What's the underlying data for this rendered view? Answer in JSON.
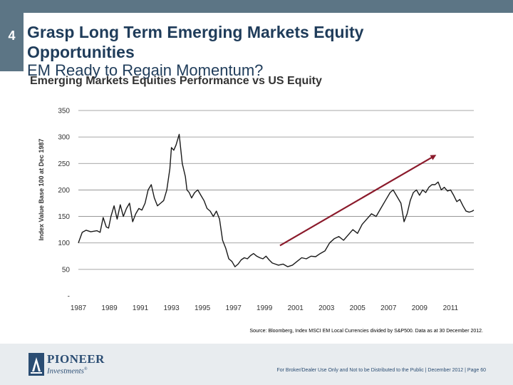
{
  "slide": {
    "number": "4",
    "title_line1": "Grasp Long Term Emerging Markets Equity",
    "title_line2": "Opportunities",
    "subtitle": "EM Ready to Regain Momentum?",
    "accent_color": "#5c7585",
    "title_color": "#1f3c5a"
  },
  "chart_data": {
    "type": "line",
    "title": "Emerging Markets Equities Performance vs US Equity",
    "ylabel": "Index Value Base 100 at Dec 1987",
    "xlabel": "",
    "ylim": [
      0,
      350
    ],
    "xlim": [
      1987,
      2012.5
    ],
    "y_ticks": [
      "-",
      "50",
      "100",
      "150",
      "200",
      "250",
      "300",
      "350"
    ],
    "y_tick_values": [
      0,
      50,
      100,
      150,
      200,
      250,
      300,
      350
    ],
    "x_ticks": [
      "1987",
      "1989",
      "1991",
      "1993",
      "1995",
      "1997",
      "1999",
      "2001",
      "2003",
      "2005",
      "2007",
      "2009",
      "2011"
    ],
    "x_tick_values": [
      1987,
      1989,
      1991,
      1993,
      1995,
      1997,
      1999,
      2001,
      2003,
      2005,
      2007,
      2009,
      2011
    ],
    "grid": true,
    "series": [
      {
        "name": "MSCI EM Local Currencies / S&P500",
        "color": "#1a1a1a",
        "x": [
          1987.0,
          1987.25,
          1987.5,
          1987.8,
          1988.2,
          1988.4,
          1988.6,
          1988.8,
          1988.95,
          1989.1,
          1989.3,
          1989.5,
          1989.7,
          1989.9,
          1990.1,
          1990.3,
          1990.5,
          1990.7,
          1990.9,
          1991.1,
          1991.3,
          1991.5,
          1991.7,
          1991.9,
          1992.1,
          1992.3,
          1992.5,
          1992.7,
          1992.9,
          1993.0,
          1993.15,
          1993.3,
          1993.5,
          1993.7,
          1993.9,
          1994.0,
          1994.15,
          1994.3,
          1994.5,
          1994.7,
          1994.9,
          1995.1,
          1995.3,
          1995.5,
          1995.7,
          1995.9,
          1996.1,
          1996.3,
          1996.5,
          1996.7,
          1996.9,
          1997.1,
          1997.3,
          1997.5,
          1997.7,
          1997.9,
          1998.1,
          1998.3,
          1998.5,
          1998.7,
          1998.9,
          1999.1,
          1999.3,
          1999.5,
          1999.7,
          1999.9,
          2000.2,
          2000.5,
          2000.8,
          2001.1,
          2001.4,
          2001.7,
          2002.0,
          2002.3,
          2002.6,
          2002.9,
          2003.2,
          2003.5,
          2003.8,
          2004.1,
          2004.4,
          2004.7,
          2005.0,
          2005.3,
          2005.6,
          2005.9,
          2006.2,
          2006.5,
          2006.8,
          2007.1,
          2007.3,
          2007.5,
          2007.8,
          2008.0,
          2008.2,
          2008.4,
          2008.6,
          2008.8,
          2009.0,
          2009.2,
          2009.4,
          2009.6,
          2009.8,
          2010.0,
          2010.2,
          2010.4,
          2010.6,
          2010.8,
          2011.0,
          2011.2,
          2011.4,
          2011.6,
          2011.8,
          2012.0,
          2012.2,
          2012.4,
          2012.5
        ],
        "values": [
          100,
          120,
          124,
          121,
          123,
          120,
          148,
          130,
          128,
          150,
          170,
          145,
          172,
          150,
          165,
          175,
          140,
          155,
          165,
          162,
          175,
          200,
          210,
          185,
          170,
          175,
          180,
          200,
          240,
          280,
          275,
          285,
          305,
          250,
          225,
          200,
          195,
          185,
          195,
          200,
          190,
          180,
          165,
          160,
          150,
          160,
          145,
          105,
          90,
          70,
          65,
          55,
          60,
          68,
          72,
          70,
          76,
          80,
          75,
          72,
          70,
          75,
          68,
          62,
          60,
          58,
          60,
          55,
          58,
          65,
          72,
          70,
          75,
          74,
          80,
          85,
          100,
          108,
          112,
          105,
          115,
          125,
          118,
          135,
          145,
          155,
          150,
          165,
          180,
          195,
          200,
          190,
          175,
          140,
          155,
          180,
          195,
          200,
          190,
          200,
          195,
          205,
          210,
          210,
          215,
          200,
          205,
          198,
          200,
          190,
          178,
          182,
          170,
          160,
          158,
          160,
          162
        ]
      }
    ],
    "annotations": [
      {
        "type": "arrow",
        "color": "#8b1a2b",
        "from": {
          "x": 2000.0,
          "y": 95
        },
        "to": {
          "x": 2010.0,
          "y": 265
        }
      }
    ]
  },
  "source_text": "Source: Bloomberg, Index MSCI EM Local Currencies divided by S&P500. Data as at 30 December 2012.",
  "footer": {
    "logo_name": "PIONEER",
    "logo_sub": "Investments",
    "logo_tm": "®",
    "disclaimer": "For Broker/Dealer Use Only and Not to be Distributed to the Public | December 2012 | Page 60"
  }
}
